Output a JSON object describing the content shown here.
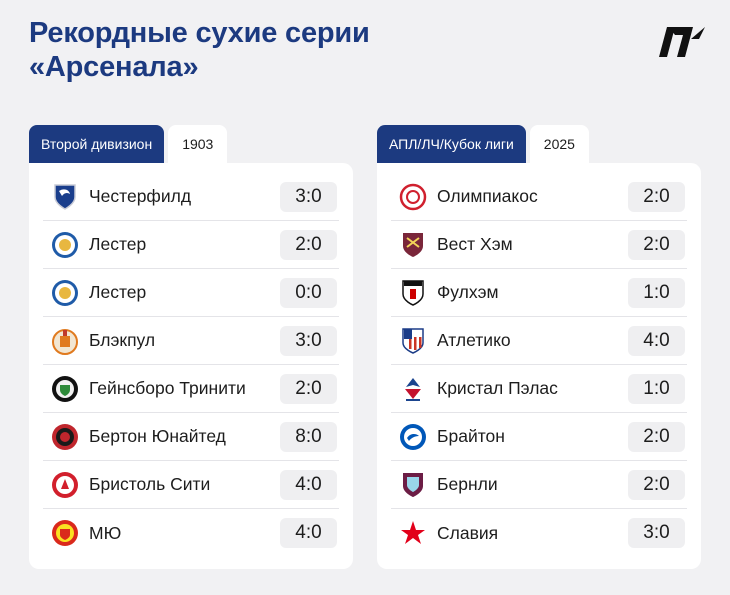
{
  "title": {
    "line1": "Рекордные сухие серии",
    "line2": "«Арсенала»"
  },
  "logo_icon": "publisher-logo-icon",
  "colors": {
    "accent": "#1c3a80",
    "background": "#f1f1f3",
    "score_bg": "#efeff1"
  },
  "left": {
    "tab_label": "Второй дивизион",
    "year": "1903",
    "rows": [
      {
        "team": "Честерфилд",
        "score": "3:0",
        "icon": "chesterfield-crest-icon"
      },
      {
        "team": "Лестер",
        "score": "2:0",
        "icon": "leicester-crest-icon"
      },
      {
        "team": "Лестер",
        "score": "0:0",
        "icon": "leicester-crest-icon"
      },
      {
        "team": "Блэкпул",
        "score": "3:0",
        "icon": "blackpool-crest-icon"
      },
      {
        "team": "Гейнсборо Тринити",
        "score": "2:0",
        "icon": "gainsborough-crest-icon"
      },
      {
        "team": "Бертон Юнайтед",
        "score": "8:0",
        "icon": "burton-crest-icon"
      },
      {
        "team": "Бристоль Сити",
        "score": "4:0",
        "icon": "bristol-city-crest-icon"
      },
      {
        "team": "МЮ",
        "score": "4:0",
        "icon": "man-utd-crest-icon"
      }
    ]
  },
  "right": {
    "tab_label": "АПЛ/ЛЧ/Кубок лиги",
    "year": "2025",
    "rows": [
      {
        "team": "Олимпиакос",
        "score": "2:0",
        "icon": "olympiacos-crest-icon"
      },
      {
        "team": "Вест Хэм",
        "score": "2:0",
        "icon": "west-ham-crest-icon"
      },
      {
        "team": "Фулхэм",
        "score": "1:0",
        "icon": "fulham-crest-icon"
      },
      {
        "team": "Атлетико",
        "score": "4:0",
        "icon": "atletico-crest-icon"
      },
      {
        "team": "Кристал Пэлас",
        "score": "1:0",
        "icon": "crystal-palace-crest-icon"
      },
      {
        "team": "Брайтон",
        "score": "2:0",
        "icon": "brighton-crest-icon"
      },
      {
        "team": "Бернли",
        "score": "2:0",
        "icon": "burnley-crest-icon"
      },
      {
        "team": "Славия",
        "score": "3:0",
        "icon": "slavia-crest-icon"
      }
    ]
  }
}
